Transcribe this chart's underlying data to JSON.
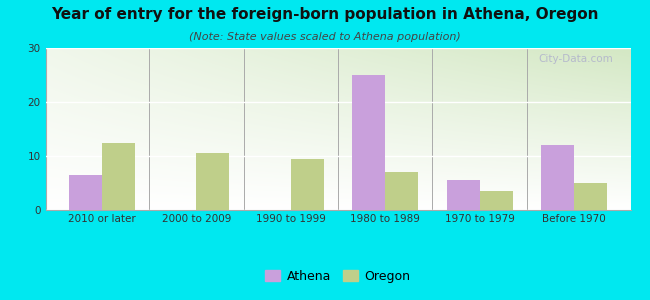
{
  "title": "Year of entry for the foreign-born population in Athena, Oregon",
  "subtitle": "(Note: State values scaled to Athena population)",
  "categories": [
    "2010 or later",
    "2000 to 2009",
    "1990 to 1999",
    "1980 to 1989",
    "1970 to 1979",
    "Before 1970"
  ],
  "athena_values": [
    6.5,
    0,
    0,
    25,
    5.5,
    12
  ],
  "oregon_values": [
    12.5,
    10.5,
    9.5,
    7,
    3.5,
    5
  ],
  "athena_color": "#c9a0dc",
  "oregon_color": "#bfcf8a",
  "background_color": "#00e8f0",
  "ylim": [
    0,
    30
  ],
  "yticks": [
    0,
    10,
    20,
    30
  ],
  "bar_width": 0.35,
  "title_fontsize": 11,
  "subtitle_fontsize": 8,
  "tick_fontsize": 7.5,
  "legend_fontsize": 9,
  "watermark": "City-Data.com"
}
